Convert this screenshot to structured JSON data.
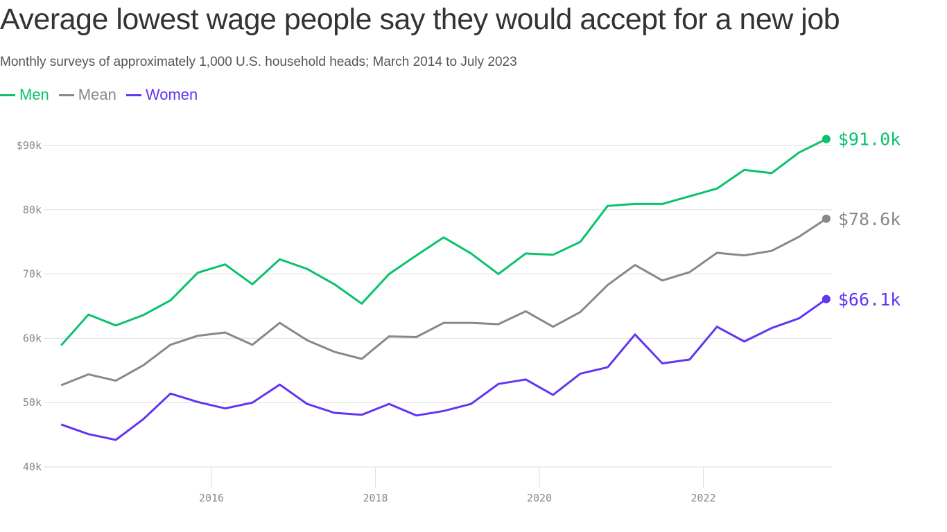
{
  "chart_data": {
    "type": "line",
    "title": "Average lowest wage people say they would accept for a new job",
    "subtitle": "Monthly surveys of approximately 1,000 U.S. household heads; March 2014 to July 2023",
    "xlabel": "",
    "ylabel": "",
    "ylim": [
      40,
      90
    ],
    "yticks": [
      "$90k",
      "80k",
      "70k",
      "60k",
      "50k",
      "40k"
    ],
    "ytick_values": [
      90,
      80,
      70,
      60,
      50,
      40
    ],
    "xticks": [
      "2016",
      "2018",
      "2020",
      "2022"
    ],
    "grid": true,
    "legend": "top-left",
    "x": [
      "2014-03",
      "2014-07",
      "2014-11",
      "2015-03",
      "2015-07",
      "2015-11",
      "2016-03",
      "2016-07",
      "2016-11",
      "2017-03",
      "2017-07",
      "2017-11",
      "2018-03",
      "2018-07",
      "2018-11",
      "2019-03",
      "2019-07",
      "2019-11",
      "2020-03",
      "2020-07",
      "2020-11",
      "2021-03",
      "2021-07",
      "2021-11",
      "2022-03",
      "2022-07",
      "2022-11",
      "2023-03",
      "2023-07"
    ],
    "series": [
      {
        "name": "Men",
        "color": "#0ac26c",
        "end_label": "$91.0k",
        "values": [
          58.9,
          63.7,
          62.0,
          63.6,
          65.9,
          70.2,
          71.5,
          68.4,
          72.3,
          70.8,
          68.4,
          65.4,
          70.0,
          72.9,
          75.7,
          73.2,
          70.0,
          73.2,
          73.0,
          75.0,
          80.6,
          80.9,
          80.9,
          82.1,
          83.3,
          86.2,
          85.7,
          88.9,
          91.0
        ]
      },
      {
        "name": "Mean",
        "color": "#888888",
        "end_label": "$78.6k",
        "values": [
          52.7,
          54.4,
          53.4,
          55.8,
          59.0,
          60.4,
          60.9,
          59.0,
          62.4,
          59.7,
          57.9,
          56.8,
          60.3,
          60.2,
          62.4,
          62.4,
          62.2,
          64.2,
          61.8,
          64.1,
          68.3,
          71.4,
          69.0,
          70.3,
          73.3,
          72.9,
          73.6,
          75.8,
          78.6
        ]
      },
      {
        "name": "Women",
        "color": "#6234f5",
        "end_label": "$66.1k",
        "values": [
          46.6,
          45.1,
          44.2,
          47.4,
          51.4,
          50.1,
          49.1,
          50.0,
          52.8,
          49.8,
          48.4,
          48.1,
          49.8,
          48.0,
          48.7,
          49.8,
          52.9,
          53.6,
          51.2,
          54.5,
          55.5,
          60.6,
          56.1,
          56.7,
          61.8,
          59.5,
          61.6,
          63.1,
          66.1
        ]
      }
    ]
  }
}
